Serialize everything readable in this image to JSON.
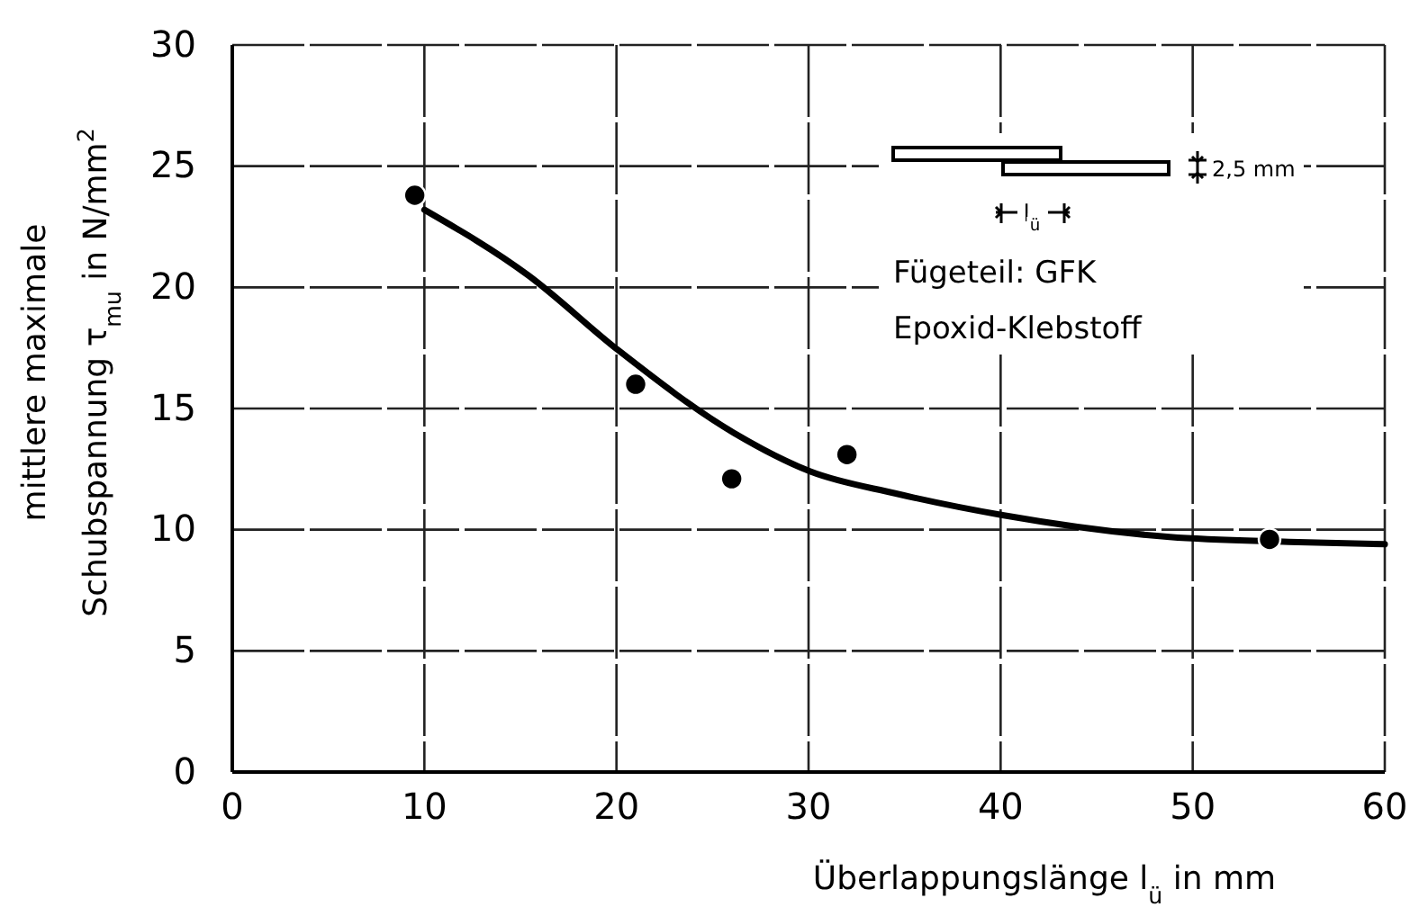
{
  "chart_data": {
    "type": "scatter",
    "xlabel": "Überlappungslänge   l$_{ü}$  in  mm",
    "ylabel": "mittlere maximale\nSchubspannung  τ$_{mu}$  in  N/mm$^{2}$",
    "xlim": [
      0,
      60
    ],
    "ylim": [
      0,
      30
    ],
    "xticks": [
      0,
      10,
      20,
      30,
      40,
      50,
      60
    ],
    "yticks": [
      0,
      5,
      10,
      15,
      20,
      25,
      30
    ],
    "grid": true,
    "series": [
      {
        "marker": "circle",
        "color": "#000000",
        "x": [
          9.5,
          21,
          26,
          32,
          54
        ],
        "values": [
          23.8,
          16,
          12.1,
          13.1,
          9.6
        ]
      },
      {
        "type": "line",
        "color": "#000000",
        "line_style": "solid",
        "marker": "none",
        "x": [
          10,
          15.4,
          20.1,
          26.1,
          30.1,
          34.5,
          40.1,
          48.8,
          55,
          60
        ],
        "values": [
          23.2,
          20.5,
          17.4,
          14,
          12.4,
          11.5,
          10.6,
          9.7,
          9.5,
          9.4
        ]
      }
    ],
    "annotations": [
      "Fügeteil: GFK",
      "Epoxid-Klebstoff",
      "2,5 mm",
      "l$_{ü}$"
    ]
  }
}
